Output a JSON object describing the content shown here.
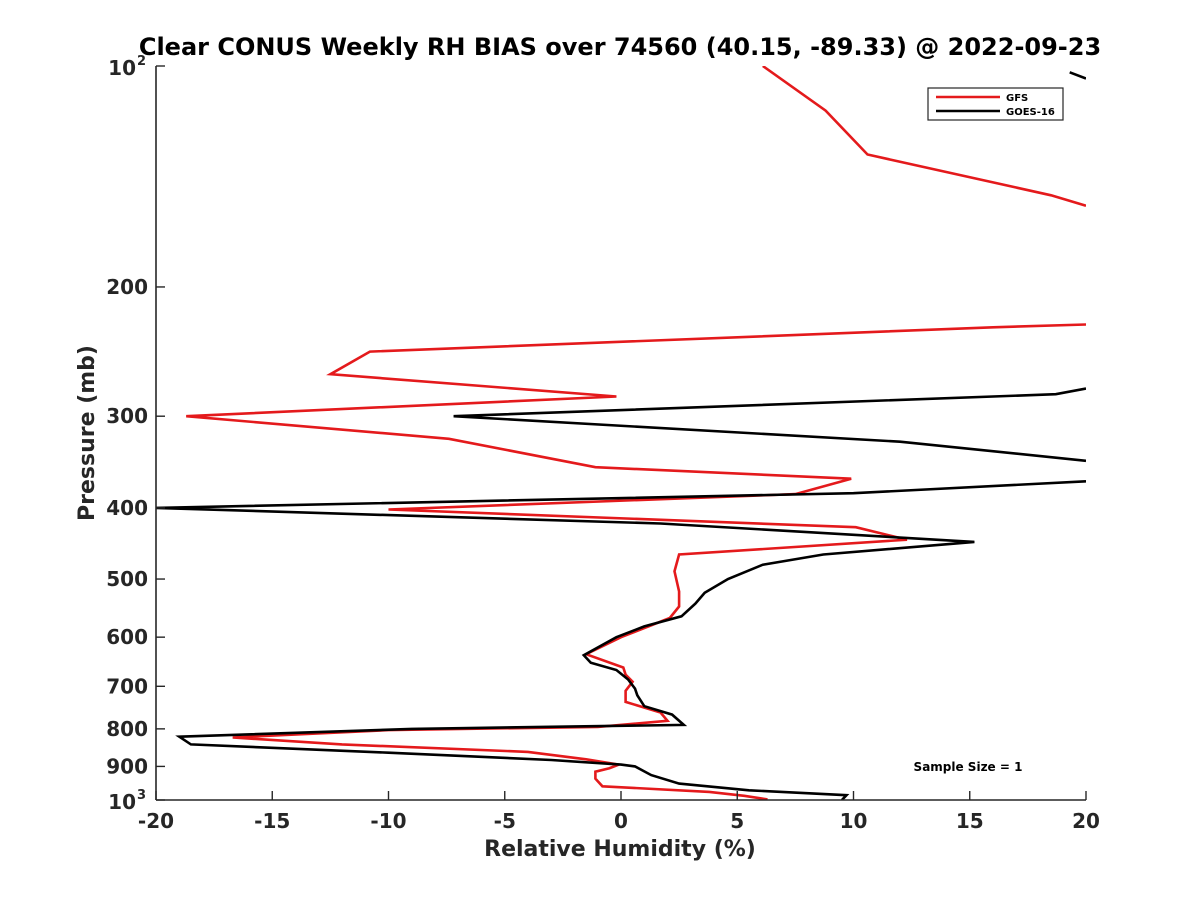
{
  "chart_data": {
    "type": "line",
    "title": "Clear CONUS Weekly RH BIAS over 74560 (40.15, -89.33) @ 2022-09-23",
    "xlabel": "Relative Humidity (%)",
    "ylabel": "Pressure (mb)",
    "xlim": [
      -20,
      20
    ],
    "ylim": [
      100,
      1000
    ],
    "yscale": "log",
    "y_reversed": true,
    "grid": false,
    "legend_position": "top-right",
    "x_ticks": [
      "-20",
      "-15",
      "-10",
      "-5",
      "0",
      "5",
      "10",
      "15",
      "20"
    ],
    "y_ticks": [
      {
        "value": 100,
        "base": "10",
        "exp": "2"
      },
      {
        "value": 200,
        "label": "200"
      },
      {
        "value": 300,
        "label": "300"
      },
      {
        "value": 400,
        "label": "400"
      },
      {
        "value": 500,
        "label": "500"
      },
      {
        "value": 600,
        "label": "600"
      },
      {
        "value": 700,
        "label": "700"
      },
      {
        "value": 800,
        "label": "800"
      },
      {
        "value": 900,
        "label": "900"
      },
      {
        "value": 1000,
        "base": "10",
        "exp": "3"
      }
    ],
    "annotation": "Sample Size = 1",
    "series": [
      {
        "name": "GFS",
        "color": "#e41a1c",
        "points": [
          [
            6.1,
            100
          ],
          [
            8.8,
            115
          ],
          [
            10.6,
            132
          ],
          [
            18.5,
            150
          ],
          [
            20.0,
            155
          ],
          [
            null,
            null
          ],
          [
            20.0,
            225
          ],
          [
            16,
            227
          ],
          [
            -10.8,
            245
          ],
          [
            -12.5,
            263
          ],
          [
            -0.2,
            282
          ],
          [
            -18.7,
            300
          ],
          [
            -7.4,
            322
          ],
          [
            -1.1,
            352
          ],
          [
            9.9,
            365
          ],
          [
            7.5,
            383
          ],
          [
            -10.0,
            402
          ],
          [
            10.1,
            425
          ],
          [
            12.3,
            442
          ],
          [
            2.5,
            463
          ],
          [
            2.3,
            488
          ],
          [
            2.5,
            520
          ],
          [
            2.5,
            545
          ],
          [
            2.1,
            565
          ],
          [
            0.0,
            600
          ],
          [
            -1.5,
            633
          ],
          [
            0.1,
            660
          ],
          [
            0.2,
            675
          ],
          [
            0.5,
            690
          ],
          [
            0.2,
            710
          ],
          [
            0.2,
            735
          ],
          [
            1.7,
            760
          ],
          [
            2.0,
            780
          ],
          [
            -1.0,
            795
          ],
          [
            -10.0,
            803
          ],
          [
            -16.7,
            822
          ],
          [
            -12.0,
            840
          ],
          [
            -4.0,
            860
          ],
          [
            -1.5,
            880
          ],
          [
            -0.1,
            895
          ],
          [
            -0.5,
            905
          ],
          [
            -1.1,
            915
          ],
          [
            -1.1,
            935
          ],
          [
            -0.8,
            958
          ],
          [
            3.8,
            975
          ],
          [
            5.3,
            987
          ],
          [
            6.3,
            998
          ]
        ]
      },
      {
        "name": "GOES-16",
        "color": "#000000",
        "points": [
          [
            19.3,
            102
          ],
          [
            20.0,
            104
          ],
          [
            null,
            null
          ],
          [
            20.0,
            275
          ],
          [
            18.7,
            280
          ],
          [
            -7.2,
            300
          ],
          [
            12.0,
            325
          ],
          [
            20.0,
            345
          ],
          [
            null,
            null
          ],
          [
            20.0,
            368
          ],
          [
            10.0,
            382
          ],
          [
            -20.0,
            400
          ],
          [
            1.7,
            420
          ],
          [
            15.2,
            445
          ],
          [
            8.7,
            463
          ],
          [
            6.1,
            478
          ],
          [
            4.6,
            500
          ],
          [
            3.6,
            522
          ],
          [
            3.2,
            540
          ],
          [
            2.6,
            562
          ],
          [
            1.0,
            580
          ],
          [
            -0.2,
            600
          ],
          [
            -1.6,
            635
          ],
          [
            -1.3,
            650
          ],
          [
            -0.2,
            665
          ],
          [
            0.3,
            685
          ],
          [
            0.6,
            705
          ],
          [
            0.7,
            720
          ],
          [
            1.0,
            745
          ],
          [
            2.2,
            765
          ],
          [
            2.7,
            790
          ],
          [
            -9.0,
            800
          ],
          [
            -19.0,
            820
          ],
          [
            -18.5,
            840
          ],
          [
            -10.0,
            862
          ],
          [
            -3.0,
            882
          ],
          [
            0.0,
            895
          ],
          [
            0.6,
            900
          ],
          [
            1.3,
            925
          ],
          [
            2.5,
            950
          ],
          [
            5.5,
            970
          ],
          [
            9.7,
            985
          ],
          [
            9.5,
            1000
          ]
        ]
      }
    ]
  }
}
